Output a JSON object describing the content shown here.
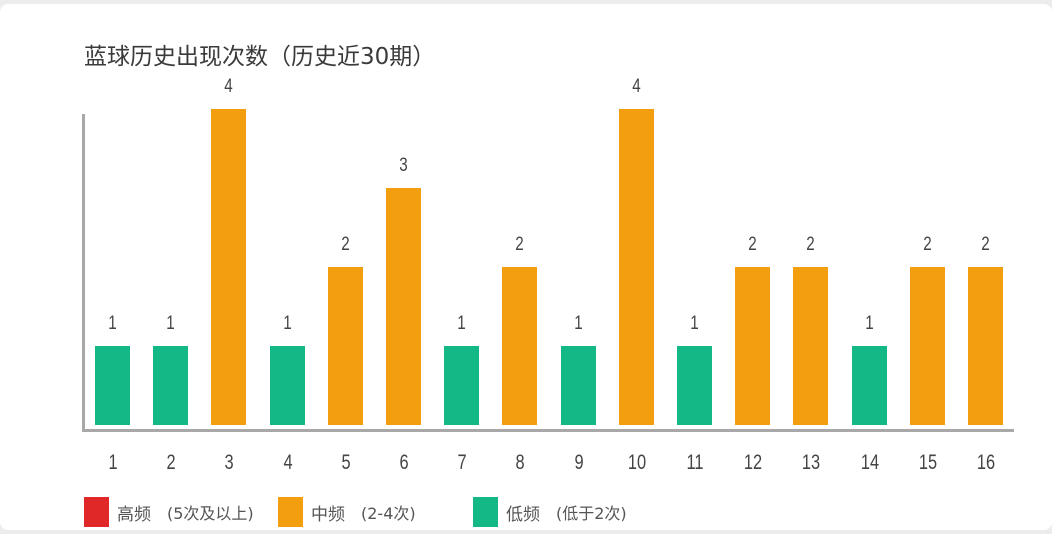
{
  "title": "蓝球历史出现次数（历史近30期）",
  "colors": {
    "high": "#E02828",
    "mid": "#F29E0E",
    "low": "#13B886",
    "axis": "#A8A8A8",
    "text": "#444444"
  },
  "legend": [
    {
      "label": "高频",
      "note": "(5次及以上)",
      "color": "#E02828"
    },
    {
      "label": "中频",
      "note": "(2-4次)",
      "color": "#F29E0E"
    },
    {
      "label": "低频",
      "note": "(低于2次)",
      "color": "#13B886"
    }
  ],
  "chart_data": {
    "type": "bar",
    "title": "蓝球历史出现次数（历史近30期）",
    "xlabel": "",
    "ylabel": "",
    "categories": [
      "1",
      "2",
      "3",
      "4",
      "5",
      "6",
      "7",
      "8",
      "9",
      "10",
      "11",
      "12",
      "13",
      "14",
      "15",
      "16"
    ],
    "values": [
      1,
      1,
      4,
      1,
      2,
      3,
      1,
      2,
      1,
      4,
      1,
      2,
      2,
      1,
      2,
      2
    ],
    "bar_colors": [
      "low",
      "low",
      "mid",
      "low",
      "mid",
      "mid",
      "low",
      "mid",
      "low",
      "mid",
      "low",
      "mid",
      "mid",
      "low",
      "mid",
      "mid"
    ],
    "ylim": [
      0,
      4
    ],
    "grid": false,
    "data_labels": true,
    "legend_position": "bottom-left",
    "legend": [
      "高频 (5次及以上)",
      "中频 (2-4次)",
      "低频 (低于2次)"
    ]
  }
}
